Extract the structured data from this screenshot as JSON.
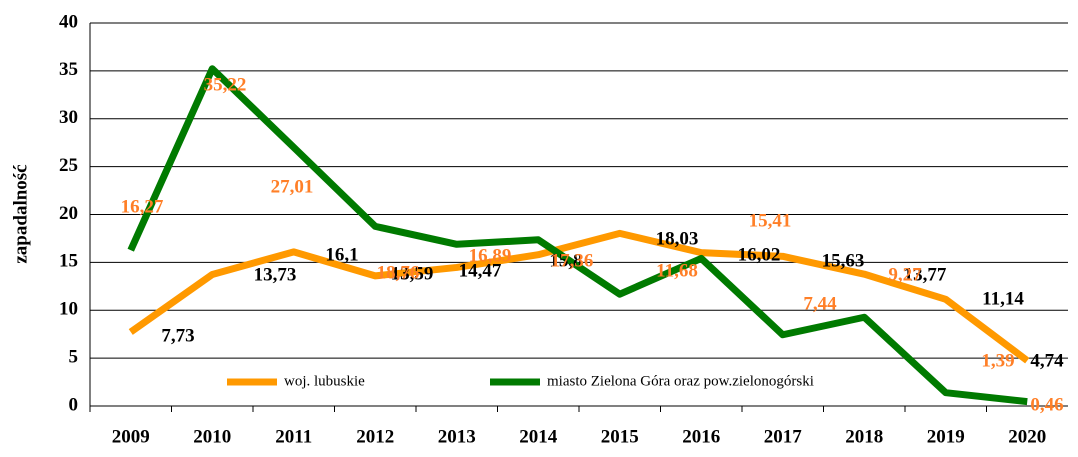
{
  "chart_data": {
    "type": "line",
    "y_label": "zapadalność",
    "categories": [
      "2009",
      "2010",
      "2011",
      "2012",
      "2013",
      "2014",
      "2015",
      "2016",
      "2017",
      "2018",
      "2019",
      "2020"
    ],
    "series": [
      {
        "name": "woj. lubuskie",
        "color": "#ff9900",
        "label_color": "#000000",
        "values": [
          7.73,
          13.73,
          16.1,
          13.59,
          14.47,
          15.8,
          18.03,
          16.02,
          15.63,
          13.77,
          11.14,
          4.74
        ],
        "value_labels": [
          "7,73",
          "13,73",
          "16,1",
          "13,59",
          "14,47",
          "15,8",
          "18,03",
          "16,02",
          "15,63",
          "13,77",
          "11,14",
          "4,74"
        ]
      },
      {
        "name": "miasto Zielona Góra oraz pow.zielonogórski",
        "color": "#007a00",
        "label_color": "#ff7f27",
        "values": [
          16.27,
          35.22,
          27.01,
          18.76,
          16.89,
          17.36,
          11.68,
          15.41,
          7.44,
          9.27,
          1.39,
          0.46
        ],
        "value_labels": [
          "16,27",
          "35,22",
          "27,01",
          "18,76",
          "16,89",
          "17,36",
          "11,68",
          "15,41",
          "7,44",
          "9,27",
          "1,39",
          "0,46"
        ]
      }
    ],
    "ylim": [
      0,
      40
    ],
    "yticks": [
      0,
      5,
      10,
      15,
      20,
      25,
      30,
      35,
      40
    ],
    "grid": true
  }
}
